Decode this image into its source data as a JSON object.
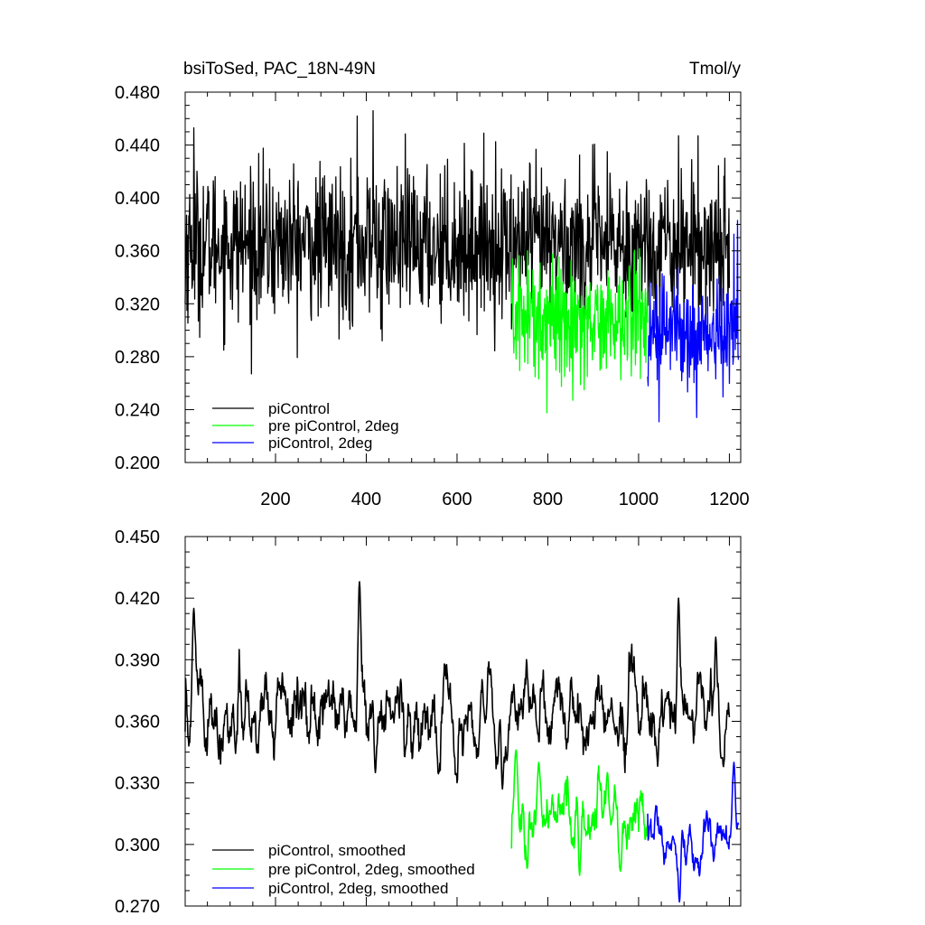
{
  "chart_data": [
    {
      "type": "line",
      "title": "bsiToSed, PAC_18N-49N",
      "units": "Tmol/y",
      "xlabel": "",
      "ylabel": "",
      "xlim": [
        1,
        1225
      ],
      "ylim": [
        0.2,
        0.48
      ],
      "xticks": [
        200,
        400,
        600,
        800,
        1000,
        1200
      ],
      "yticks": [
        0.2,
        0.24,
        0.28,
        0.32,
        0.36,
        0.4,
        0.44,
        0.48
      ],
      "ytick_labels": [
        "0.200",
        "0.240",
        "0.280",
        "0.320",
        "0.360",
        "0.400",
        "0.440",
        "0.480"
      ],
      "legend_position": "bottom-left",
      "series": [
        {
          "name": "piControl",
          "color": "#000000",
          "x_range": [
            1,
            1200
          ],
          "mean": 0.365,
          "amplitude": 0.028,
          "start_value": 0.32,
          "peaks": [
            [
              20,
              0.453
            ],
            [
              380,
              0.462
            ],
            [
              415,
              0.466
            ],
            [
              1088,
              0.447
            ],
            [
              1190,
              0.43
            ]
          ],
          "troughs": [
            [
              5,
              0.315
            ],
            [
              435,
              0.292
            ],
            [
              370,
              0.303
            ],
            [
              720,
              0.301
            ]
          ]
        },
        {
          "name": "pre piControl, 2deg",
          "color": "#00ff00",
          "x_range": [
            720,
            1020
          ],
          "mean": 0.31,
          "amplitude": 0.022,
          "start_value": 0.32,
          "peaks": [
            [
              755,
              0.36
            ],
            [
              990,
              0.358
            ]
          ],
          "troughs": [
            [
              855,
              0.247
            ],
            [
              880,
              0.255
            ]
          ]
        },
        {
          "name": "piControl, 2deg",
          "color": "#0000ff",
          "x_range": [
            1020,
            1220
          ],
          "mean": 0.3,
          "amplitude": 0.02,
          "start_value": 0.265,
          "peaks": [
            [
              1218,
              0.383
            ]
          ],
          "troughs": [
            [
              1128,
              0.234
            ]
          ]
        }
      ]
    },
    {
      "type": "line",
      "title": "",
      "xlabel": "",
      "ylabel": "",
      "xlim": [
        1,
        1225
      ],
      "ylim": [
        0.27,
        0.45
      ],
      "yticks": [
        0.27,
        0.3,
        0.33,
        0.36,
        0.39,
        0.42,
        0.45
      ],
      "ytick_labels": [
        "0.270",
        "0.300",
        "0.330",
        "0.360",
        "0.390",
        "0.420",
        "0.450"
      ],
      "legend_position": "bottom-left",
      "series": [
        {
          "name": "piControl, smoothed",
          "color": "#000000",
          "x_range": [
            1,
            1200
          ],
          "mean": 0.364,
          "amplitude": 0.011,
          "start_value": 0.355,
          "peaks": [
            [
              20,
              0.415
            ],
            [
              385,
              0.428
            ],
            [
              1088,
              0.42
            ],
            [
              1170,
              0.401
            ]
          ],
          "troughs": [
            [
              420,
              0.335
            ],
            [
              700,
              0.327
            ],
            [
              1182,
              0.342
            ]
          ]
        },
        {
          "name": "pre piControl, 2deg, smoothed",
          "color": "#00ff00",
          "x_range": [
            720,
            1020
          ],
          "mean": 0.312,
          "amplitude": 0.009,
          "start_value": 0.298,
          "peaks": [
            [
              730,
              0.346
            ],
            [
              780,
              0.34
            ]
          ],
          "troughs": [
            [
              870,
              0.285
            ],
            [
              960,
              0.287
            ]
          ]
        },
        {
          "name": "piControl, 2deg, smoothed",
          "color": "#0000ff",
          "x_range": [
            1020,
            1220
          ],
          "mean": 0.303,
          "amplitude": 0.007,
          "start_value": 0.315,
          "peaks": [
            [
              1210,
              0.34
            ]
          ],
          "troughs": [
            [
              1090,
              0.272
            ]
          ]
        }
      ]
    }
  ]
}
